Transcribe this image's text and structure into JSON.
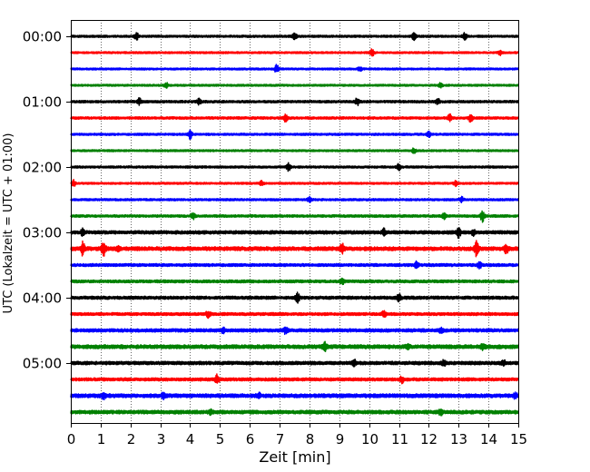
{
  "chart_data": {
    "type": "line",
    "subtype": "helicorder-seismogram",
    "title": "",
    "xlabel": "Zeit  [min]",
    "ylabel": "UTC (Lokalzeit = UTC + 01:00)",
    "xlim": [
      0,
      15
    ],
    "x_ticks": [
      "0",
      "1",
      "2",
      "3",
      "4",
      "5",
      "6",
      "7",
      "8",
      "9",
      "10",
      "11",
      "12",
      "13",
      "14",
      "15"
    ],
    "y_ticks": [
      "00:00",
      "01:00",
      "02:00",
      "03:00",
      "04:00",
      "05:00"
    ],
    "grid": "vertical dotted lines at every minute",
    "trace_interval_minutes": 15,
    "trace_color_cycle": [
      "#000000",
      "#ff0000",
      "#0000ff",
      "#008000"
    ],
    "series": [
      {
        "start": "00:00",
        "color": "#000000",
        "noise": 0.9,
        "events": [
          [
            2.2,
            3.0
          ],
          [
            7.5,
            3.5
          ],
          [
            11.5,
            3.0
          ],
          [
            13.2,
            3.0
          ]
        ]
      },
      {
        "start": "00:15",
        "color": "#ff0000",
        "noise": 0.8,
        "events": [
          [
            10.1,
            3.0
          ],
          [
            14.4,
            2.0
          ]
        ]
      },
      {
        "start": "00:30",
        "color": "#0000ff",
        "noise": 0.8,
        "events": [
          [
            6.9,
            3.5
          ],
          [
            9.7,
            2.0
          ]
        ]
      },
      {
        "start": "00:45",
        "color": "#008000",
        "noise": 0.8,
        "events": [
          [
            3.2,
            2.0
          ],
          [
            12.4,
            2.0
          ]
        ]
      },
      {
        "start": "01:00",
        "color": "#000000",
        "noise": 1.0,
        "events": [
          [
            2.3,
            2.5
          ],
          [
            4.3,
            2.5
          ],
          [
            9.6,
            3.0
          ],
          [
            12.3,
            2.5
          ]
        ]
      },
      {
        "start": "01:15",
        "color": "#ff0000",
        "noise": 1.0,
        "events": [
          [
            7.2,
            3.0
          ],
          [
            12.7,
            3.0
          ],
          [
            13.4,
            3.0
          ]
        ]
      },
      {
        "start": "01:30",
        "color": "#0000ff",
        "noise": 0.9,
        "events": [
          [
            4.0,
            3.5
          ],
          [
            12.0,
            2.0
          ]
        ]
      },
      {
        "start": "01:45",
        "color": "#008000",
        "noise": 0.8,
        "events": [
          [
            11.5,
            2.0
          ]
        ]
      },
      {
        "start": "02:00",
        "color": "#000000",
        "noise": 0.9,
        "events": [
          [
            7.3,
            3.0
          ],
          [
            11.0,
            3.0
          ]
        ]
      },
      {
        "start": "02:15",
        "color": "#ff0000",
        "noise": 0.8,
        "events": [
          [
            0.1,
            2.5
          ],
          [
            6.4,
            2.0
          ],
          [
            12.9,
            2.0
          ]
        ]
      },
      {
        "start": "02:30",
        "color": "#0000ff",
        "noise": 0.9,
        "events": [
          [
            8.0,
            2.0
          ],
          [
            13.1,
            2.0
          ]
        ]
      },
      {
        "start": "02:45",
        "color": "#008000",
        "noise": 1.0,
        "events": [
          [
            4.1,
            2.5
          ],
          [
            12.5,
            2.5
          ],
          [
            13.8,
            4.5
          ]
        ]
      },
      {
        "start": "03:00",
        "color": "#000000",
        "noise": 1.4,
        "events": [
          [
            0.4,
            2.5
          ],
          [
            10.5,
            2.5
          ],
          [
            13.0,
            4.0
          ],
          [
            13.5,
            2.5
          ]
        ]
      },
      {
        "start": "03:15",
        "color": "#ff0000",
        "noise": 1.6,
        "events": [
          [
            0.4,
            5.0
          ],
          [
            1.1,
            6.0
          ],
          [
            1.6,
            3.0
          ],
          [
            9.1,
            4.0
          ],
          [
            13.6,
            6.0
          ],
          [
            14.6,
            4.0
          ]
        ]
      },
      {
        "start": "03:30",
        "color": "#0000ff",
        "noise": 1.2,
        "events": [
          [
            11.6,
            3.0
          ],
          [
            13.7,
            3.0
          ]
        ]
      },
      {
        "start": "03:45",
        "color": "#008000",
        "noise": 1.2,
        "events": [
          [
            9.1,
            2.0
          ]
        ]
      },
      {
        "start": "04:00",
        "color": "#000000",
        "noise": 1.3,
        "events": [
          [
            7.6,
            3.5
          ],
          [
            11.0,
            2.5
          ]
        ]
      },
      {
        "start": "04:15",
        "color": "#ff0000",
        "noise": 1.2,
        "events": [
          [
            4.6,
            2.5
          ],
          [
            10.5,
            2.5
          ]
        ]
      },
      {
        "start": "04:30",
        "color": "#0000ff",
        "noise": 1.4,
        "events": [
          [
            5.1,
            2.5
          ],
          [
            7.2,
            2.5
          ],
          [
            12.4,
            2.0
          ]
        ]
      },
      {
        "start": "04:45",
        "color": "#008000",
        "noise": 1.6,
        "events": [
          [
            8.5,
            3.5
          ],
          [
            11.3,
            2.0
          ],
          [
            13.8,
            2.0
          ]
        ]
      },
      {
        "start": "05:00",
        "color": "#000000",
        "noise": 1.4,
        "events": [
          [
            9.5,
            2.5
          ],
          [
            12.5,
            2.0
          ],
          [
            14.5,
            2.5
          ]
        ]
      },
      {
        "start": "05:15",
        "color": "#ff0000",
        "noise": 1.3,
        "events": [
          [
            4.9,
            3.5
          ],
          [
            11.1,
            2.5
          ]
        ]
      },
      {
        "start": "05:30",
        "color": "#0000ff",
        "noise": 1.6,
        "events": [
          [
            1.1,
            2.5
          ],
          [
            3.1,
            2.0
          ],
          [
            6.3,
            2.0
          ],
          [
            14.9,
            2.0
          ]
        ]
      },
      {
        "start": "05:45",
        "color": "#008000",
        "noise": 1.5,
        "events": [
          [
            4.7,
            2.0
          ],
          [
            12.4,
            2.0
          ]
        ]
      }
    ]
  }
}
